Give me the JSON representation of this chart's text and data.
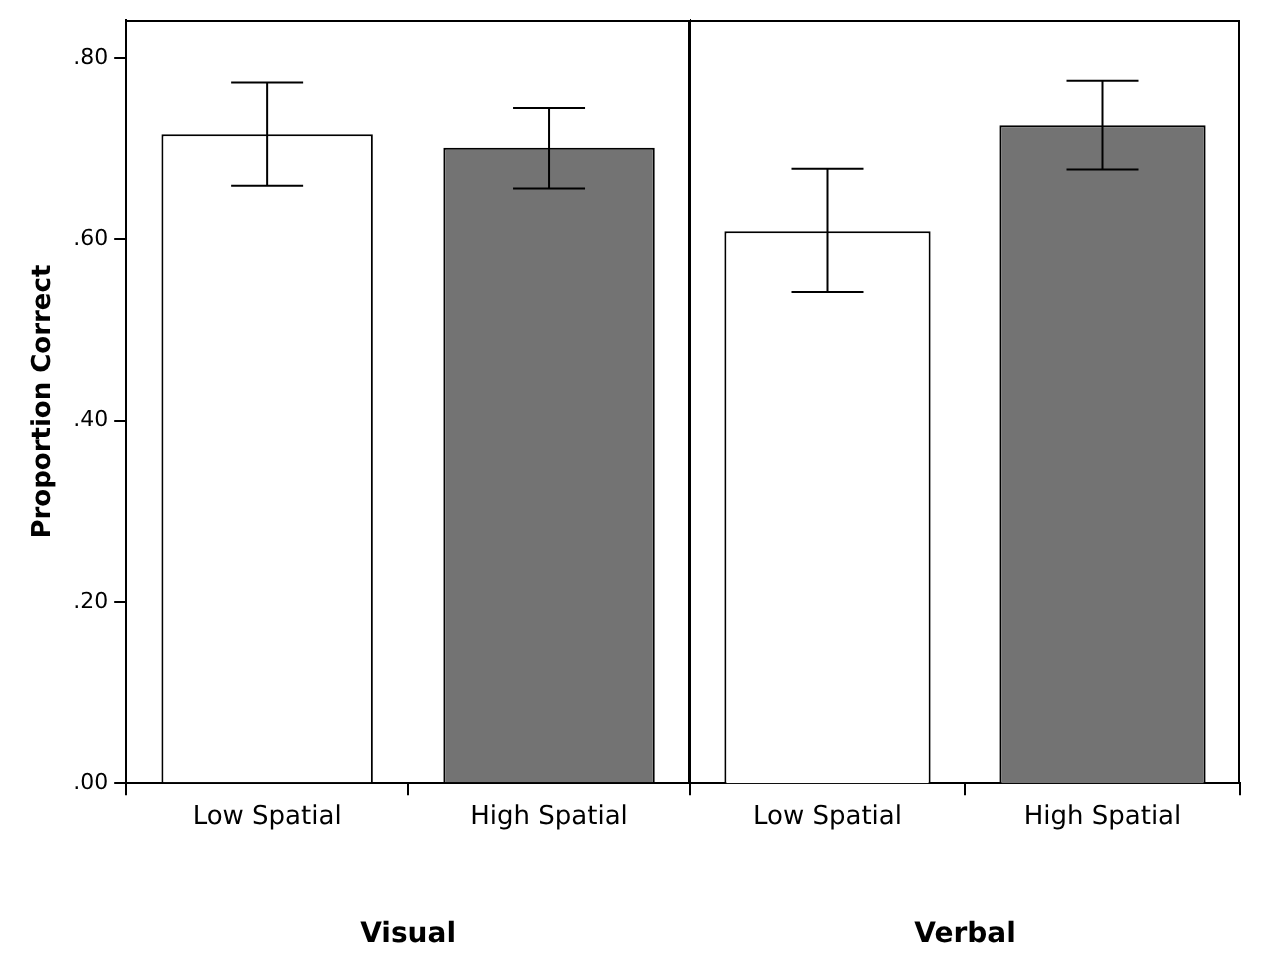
{
  "chart_data": [
    {
      "type": "bar",
      "ylabel": "Proportion Correct",
      "xlabel": "Visual",
      "categories": [
        "Low Spatial",
        "High Spatial"
      ],
      "values": [
        0.716,
        0.701
      ],
      "colors": [
        "#ffffff",
        "#737373"
      ],
      "errors": [
        [
          0.659,
          0.773
        ],
        [
          0.656,
          0.745
        ]
      ],
      "ylim": [
        0,
        0.842
      ],
      "yticks": [
        {
          "value": 0,
          "label": ".00"
        },
        {
          "value": 0.2,
          "label": ".20"
        },
        {
          "value": 0.4,
          "label": ".40"
        },
        {
          "value": 0.6,
          "label": ".60"
        },
        {
          "value": 0.8,
          "label": ".80"
        }
      ],
      "grid": false,
      "legend": false
    },
    {
      "type": "bar",
      "xlabel": "Verbal",
      "categories": [
        "Low Spatial",
        "High Spatial"
      ],
      "values": [
        0.609,
        0.726
      ],
      "colors": [
        "#ffffff",
        "#737373"
      ],
      "errors": [
        [
          0.542,
          0.678
        ],
        [
          0.677,
          0.775
        ]
      ],
      "ylim": [
        0,
        0.842
      ],
      "tick_labels": "x",
      "grid": false,
      "legend": false
    }
  ]
}
